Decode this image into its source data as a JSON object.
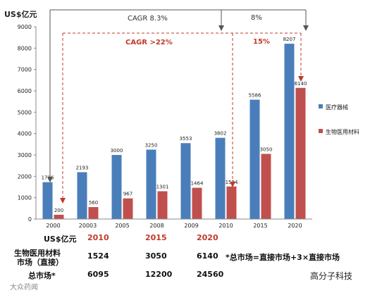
{
  "chart_data": {
    "type": "bar",
    "ylabel": "US$亿元",
    "ylim": [
      0,
      9000
    ],
    "yticks": [
      0,
      1000,
      2000,
      3000,
      4000,
      5000,
      6000,
      7000,
      8000,
      9000
    ],
    "categories": [
      "2000",
      "20003",
      "2005",
      "2008",
      "2009",
      "2010",
      "2015",
      "2020"
    ],
    "series": [
      {
        "name": "医疗器械",
        "color": "#4a7ebb",
        "values": [
          1726,
          2193,
          3000,
          3250,
          3553,
          3802,
          5586,
          8207
        ]
      },
      {
        "name": "生物医用材料",
        "color": "#c0504d",
        "values": [
          200,
          560,
          967,
          1301,
          1464,
          1524,
          3050,
          6140
        ]
      }
    ],
    "legend_position": "right",
    "annotations": [
      {
        "text": "CAGR 8.3%",
        "color": "#333333"
      },
      {
        "text": "8%",
        "color": "#333333"
      },
      {
        "text": "CAGR >22%",
        "color": "#c0392b"
      },
      {
        "text": "15%",
        "color": "#c0392b"
      }
    ]
  },
  "table": {
    "header_unit": "US$亿元",
    "years": [
      "2010",
      "2015",
      "2020"
    ],
    "row1_label_line1": "生物医用材料",
    "row1_label_line2": "市场（直接）",
    "row1_values": [
      "1524",
      "3050",
      "6140"
    ],
    "row2_label": "总市场*",
    "row2_values": [
      "6095",
      "12200",
      "24560"
    ],
    "footnote": "*总市场=直接市场+3×直接市场"
  },
  "watermark": {
    "left_text": "大众药闻",
    "right_text": "高分子科技"
  }
}
